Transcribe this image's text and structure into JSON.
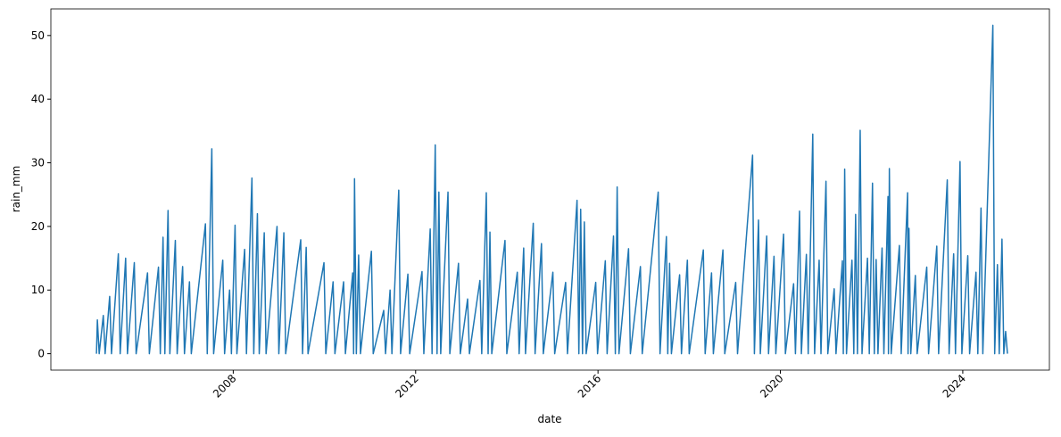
{
  "chart_data": {
    "type": "line",
    "x_label": "date",
    "y_label": "rain_mm",
    "x": [
      2005.0,
      2005.02,
      2005.06,
      2005.15,
      2005.19,
      2005.29,
      2005.33,
      2005.48,
      2005.52,
      2005.64,
      2005.68,
      2005.83,
      2005.87,
      2006.12,
      2006.16,
      2006.36,
      2006.4,
      2006.46,
      2006.5,
      2006.57,
      2006.61,
      2006.73,
      2006.77,
      2006.89,
      2006.93,
      2007.04,
      2007.08,
      2007.39,
      2007.43,
      2007.53,
      2007.57,
      2007.77,
      2007.81,
      2007.92,
      2007.96,
      2008.04,
      2008.08,
      2008.25,
      2008.29,
      2008.41,
      2008.45,
      2008.53,
      2008.57,
      2008.68,
      2008.72,
      2008.96,
      2009.0,
      2009.11,
      2009.15,
      2009.48,
      2009.52,
      2009.6,
      2009.64,
      2009.99,
      2010.03,
      2010.19,
      2010.23,
      2010.42,
      2010.46,
      2010.62,
      2010.64,
      2010.66,
      2010.7,
      2010.75,
      2010.79,
      2011.03,
      2011.07,
      2011.3,
      2011.34,
      2011.44,
      2011.48,
      2011.63,
      2011.67,
      2011.83,
      2011.87,
      2012.14,
      2012.18,
      2012.32,
      2012.36,
      2012.43,
      2012.47,
      2012.51,
      2012.55,
      2012.71,
      2012.75,
      2012.94,
      2012.98,
      2013.14,
      2013.18,
      2013.41,
      2013.45,
      2013.55,
      2013.59,
      2013.63,
      2013.67,
      2013.96,
      2014.0,
      2014.23,
      2014.27,
      2014.37,
      2014.41,
      2014.58,
      2014.62,
      2014.76,
      2014.8,
      2015.01,
      2015.05,
      2015.29,
      2015.33,
      2015.54,
      2015.58,
      2015.62,
      2015.66,
      2015.7,
      2015.74,
      2015.95,
      2015.99,
      2016.16,
      2016.2,
      2016.34,
      2016.38,
      2016.42,
      2016.46,
      2016.67,
      2016.71,
      2016.93,
      2016.97,
      2017.32,
      2017.36,
      2017.5,
      2017.53,
      2017.57,
      2017.61,
      2017.79,
      2017.83,
      2017.96,
      2018.0,
      2018.31,
      2018.35,
      2018.49,
      2018.53,
      2018.74,
      2018.78,
      2019.02,
      2019.06,
      2019.39,
      2019.43,
      2019.52,
      2019.56,
      2019.7,
      2019.74,
      2019.86,
      2019.9,
      2020.07,
      2020.11,
      2020.29,
      2020.33,
      2020.42,
      2020.46,
      2020.57,
      2020.61,
      2020.71,
      2020.75,
      2020.85,
      2020.89,
      2021.0,
      2021.04,
      2021.18,
      2021.22,
      2021.36,
      2021.38,
      2021.41,
      2021.45,
      2021.57,
      2021.61,
      2021.65,
      2021.69,
      2021.75,
      2021.79,
      2021.91,
      2021.95,
      2022.02,
      2022.06,
      2022.1,
      2022.14,
      2022.23,
      2022.27,
      2022.36,
      2022.37,
      2022.39,
      2022.43,
      2022.61,
      2022.65,
      2022.79,
      2022.8,
      2022.82,
      2022.86,
      2022.96,
      2023.0,
      2023.21,
      2023.25,
      2023.43,
      2023.47,
      2023.66,
      2023.7,
      2023.8,
      2023.84,
      2023.94,
      2023.98,
      2024.11,
      2024.15,
      2024.29,
      2024.33,
      2024.4,
      2024.44,
      2024.66,
      2024.7,
      2024.76,
      2024.8,
      2024.86,
      2024.9,
      2024.94,
      2024.98
    ],
    "values": [
      0,
      5.3,
      0,
      6,
      0,
      9,
      0,
      15.7,
      0,
      15,
      0,
      14.3,
      0,
      12.7,
      0,
      13.6,
      0,
      18.3,
      0,
      22.5,
      0,
      17.8,
      0,
      13.7,
      0,
      11.3,
      0,
      20.4,
      0,
      32.2,
      0,
      14.7,
      0,
      10,
      0,
      20.2,
      0,
      16.4,
      0,
      27.6,
      0,
      22,
      0,
      19,
      0,
      20,
      0,
      19,
      0,
      17.9,
      0,
      16.7,
      0,
      14.3,
      0,
      11.3,
      0,
      11.3,
      0,
      12.7,
      0,
      27.5,
      0,
      15.5,
      0,
      16.1,
      0,
      6.8,
      0,
      10,
      0,
      25.7,
      0,
      12.5,
      0,
      12.9,
      0,
      19.6,
      0,
      32.8,
      0,
      25.4,
      0,
      25.4,
      0,
      14.2,
      0,
      8.6,
      0,
      11.5,
      0,
      25.3,
      0,
      19.1,
      0,
      17.8,
      0,
      12.8,
      0,
      16.6,
      0,
      20.5,
      0,
      17.3,
      0,
      12.8,
      0,
      11.2,
      0,
      24.1,
      0,
      22.7,
      0,
      20.7,
      0,
      11.2,
      0,
      14.6,
      0,
      18.5,
      0,
      26.2,
      0,
      16.5,
      0,
      13.7,
      0,
      25.4,
      0,
      18.4,
      0,
      14.2,
      0,
      12.4,
      0,
      14.7,
      0,
      16.3,
      0,
      12.7,
      0,
      16.3,
      0,
      11.2,
      0,
      31.2,
      0,
      21,
      0,
      18.5,
      0,
      15.3,
      0,
      18.8,
      0,
      11,
      0,
      22.4,
      0,
      15.6,
      0,
      34.5,
      0,
      14.7,
      0,
      27.1,
      0,
      10.2,
      0,
      14.6,
      0,
      29,
      0,
      14.7,
      0,
      21.9,
      0,
      35.1,
      0,
      15,
      0,
      26.8,
      0,
      14.8,
      0,
      16.6,
      0,
      24.7,
      0,
      29.1,
      0,
      17,
      0,
      25.3,
      0,
      19.7,
      0,
      12.3,
      0,
      13.6,
      0,
      16.9,
      0,
      27.3,
      0,
      15.7,
      0,
      30.2,
      0,
      15.4,
      0,
      12.8,
      0,
      22.9,
      0,
      51.6,
      0,
      14,
      0,
      18,
      0,
      3.5,
      0
    ],
    "color": "#1f77b4",
    "xlim": [
      2004.0,
      2025.9
    ],
    "xticks": [
      2008,
      2012,
      2016,
      2020,
      2024
    ],
    "ylim": [
      -2.58,
      54.18
    ],
    "yticks": [
      0,
      10,
      20,
      30,
      40,
      50
    ]
  }
}
